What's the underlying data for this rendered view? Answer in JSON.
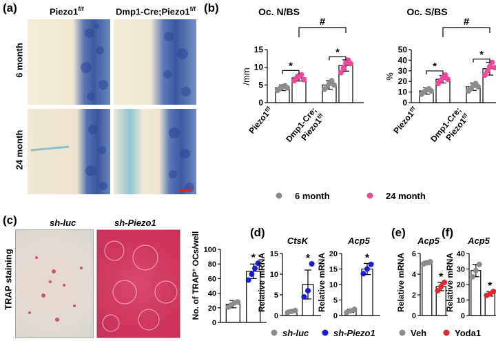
{
  "panel_a": {
    "label": "(a)",
    "col1": "Piezo1",
    "col1_sup": "f/f",
    "col2": "Dmp1-Cre;Piezo1",
    "col2_sup": "f/f",
    "row1": "6 month",
    "row2": "24 month"
  },
  "panel_b": {
    "label": "(b)",
    "legend": {
      "six": "6 month",
      "twentyfour": "24 month"
    },
    "colors": {
      "six": "#8c8c8c",
      "twentyfour": "#f0479a"
    }
  },
  "panel_c": {
    "label": "(c)",
    "img1_title": "sh-luc",
    "img2_title": "sh-Piezo1",
    "side_label": "TRAP staining"
  },
  "panel_d": {
    "label": "(d)"
  },
  "panel_e": {
    "label": "(e)"
  },
  "panel_f": {
    "label": "(f)"
  },
  "legend_cd": {
    "luc": "sh-luc",
    "piezo": "sh-Piezo1",
    "luc_color": "#8c8c8c",
    "piezo_color": "#1a1adb"
  },
  "legend_ef": {
    "veh": "Veh",
    "yoda": "Yoda1",
    "veh_color": "#8c8c8c",
    "yoda_color": "#e0262e"
  },
  "chart_data": [
    {
      "id": "b1",
      "type": "bar",
      "title": "Oc. N/BS",
      "ylabel": "/mm",
      "ylim": [
        0,
        15
      ],
      "yticks": [
        0,
        5,
        10,
        15
      ],
      "categories": [
        "Piezo1f/f",
        "Dmp1-Cre;Piezo1f/f"
      ],
      "series": [
        {
          "name": "6 month",
          "values": [
            4.2,
            5.0
          ],
          "err": [
            0.8,
            1.2
          ],
          "points": [
            [
              3.5,
              4.0,
              4.5,
              4.8,
              4.2
            ],
            [
              3.8,
              4.5,
              5.4,
              6.2,
              5.0
            ]
          ]
        },
        {
          "name": "24 month",
          "values": [
            7.0,
            10.5
          ],
          "err": [
            0.9,
            1.6
          ],
          "points": [
            [
              6.2,
              7.0,
              7.6,
              7.9,
              6.5
            ],
            [
              8.5,
              9.8,
              11.2,
              12.0,
              11.0
            ]
          ]
        }
      ],
      "annotations": [
        "*",
        "*",
        "#"
      ]
    },
    {
      "id": "b2",
      "type": "bar",
      "title": "Oc. S/BS",
      "ylabel": "%",
      "ylim": [
        0,
        50
      ],
      "yticks": [
        0,
        10,
        20,
        30,
        40,
        50
      ],
      "categories": [
        "Piezo1f/f",
        "Dmp1-Cre;Piezo1f/f"
      ],
      "series": [
        {
          "name": "6 month",
          "values": [
            11,
            15
          ],
          "err": [
            3,
            3.5
          ],
          "points": [
            [
              8,
              10,
              12,
              13,
              11
            ],
            [
              11,
              13,
              16,
              18,
              15
            ]
          ]
        },
        {
          "name": "24 month",
          "values": [
            22,
            32
          ],
          "err": [
            3.5,
            6
          ],
          "points": [
            [
              18,
              21,
              24,
              26,
              22
            ],
            [
              26,
              30,
              34,
              38,
              33
            ]
          ]
        }
      ],
      "annotations": [
        "*",
        "*",
        "#"
      ]
    },
    {
      "id": "c",
      "type": "bar",
      "ylabel": "No. of TRAP+ OCs/well",
      "ylim": [
        0,
        100
      ],
      "yticks": [
        0,
        20,
        40,
        60,
        80,
        100
      ],
      "categories": [
        "sh-luc",
        "sh-Piezo1"
      ],
      "values": [
        25,
        70
      ],
      "err": [
        5,
        10
      ],
      "points": [
        [
          21,
          24,
          27,
          28
        ],
        [
          58,
          66,
          74,
          81
        ]
      ],
      "annotations": [
        "*"
      ]
    },
    {
      "id": "d1",
      "type": "bar",
      "title": "CtsK",
      "ylabel": "Relative mRNA",
      "ylim": [
        0,
        15
      ],
      "yticks": [
        0,
        5,
        10,
        15
      ],
      "categories": [
        "sh-luc",
        "sh-Piezo1"
      ],
      "values": [
        1.0,
        7.5
      ],
      "err": [
        0.3,
        3.5
      ],
      "points": [
        [
          0.7,
          1.0,
          1.2
        ],
        [
          4.5,
          6.0,
          12.5
        ]
      ],
      "annotations": [
        "*"
      ]
    },
    {
      "id": "d2",
      "type": "bar",
      "title": "Acp5",
      "ylabel": "Relative mRNA",
      "ylim": [
        0,
        20
      ],
      "yticks": [
        0,
        5,
        10,
        15,
        20
      ],
      "categories": [
        "sh-luc",
        "sh-Piezo1"
      ],
      "values": [
        1.5,
        15.0
      ],
      "err": [
        0.5,
        1.8
      ],
      "points": [
        [
          1.0,
          1.5,
          2.0
        ],
        [
          13.5,
          15.0,
          16.5
        ]
      ],
      "annotations": [
        "*"
      ]
    },
    {
      "id": "e",
      "type": "bar",
      "title": "Acp5",
      "ylabel": "Relative mRNA",
      "ylim": [
        0,
        6
      ],
      "yticks": [
        0,
        2,
        4,
        6
      ],
      "categories": [
        "Veh",
        "Yoda1"
      ],
      "values": [
        5.1,
        2.8
      ],
      "err": [
        0.15,
        0.4
      ],
      "points": [
        [
          5.0,
          5.1,
          5.2
        ],
        [
          2.4,
          2.8,
          3.2
        ]
      ],
      "annotations": [
        "*"
      ]
    },
    {
      "id": "f",
      "type": "bar",
      "title": "Acp5",
      "ylabel": "Relative mRNA",
      "ylim": [
        0,
        40
      ],
      "yticks": [
        0,
        10,
        20,
        30,
        40
      ],
      "categories": [
        "Veh",
        "Yoda1"
      ],
      "values": [
        29,
        14
      ],
      "err": [
        4,
        1.5
      ],
      "points": [
        [
          25,
          29,
          33
        ],
        [
          13,
          14,
          15.5
        ]
      ],
      "annotations": [
        "*"
      ]
    }
  ]
}
